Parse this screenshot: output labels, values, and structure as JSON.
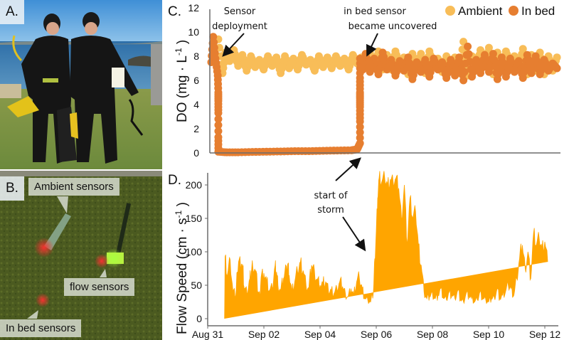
{
  "panels": {
    "a": {
      "label": "A."
    },
    "b": {
      "label": "B.",
      "callouts": {
        "ambient": "Ambient sensors",
        "flow": "flow sensors",
        "in_bed": "In bed sensors"
      }
    },
    "c": {
      "label": "C."
    },
    "d": {
      "label": "D."
    }
  },
  "colors": {
    "ambient": "#F8BD58",
    "in_bed": "#E67E30",
    "flow": "#FFA500",
    "axis": "#6b6b6b"
  },
  "chart_data": [
    {
      "id": "do",
      "type": "scatter",
      "title": "",
      "ylabel": "DO (mg · L-1)",
      "ylabel_parts": {
        "main": "DO (mg · L",
        "sup": "-1",
        "end": ")"
      },
      "xlabel": "",
      "ylim": [
        0,
        12
      ],
      "yticks": [
        0,
        2,
        4,
        6,
        8,
        10,
        12
      ],
      "xlim_days_from_aug31": [
        0,
        12.6
      ],
      "legend": {
        "position": "top-right",
        "entries": [
          "Ambient",
          "In bed"
        ]
      },
      "series": [
        {
          "name": "Ambient",
          "x_days": [
            0.3,
            0.45,
            0.55,
            0.7,
            0.85,
            1.0,
            1.15,
            1.3,
            1.45,
            1.6,
            1.75,
            1.9,
            2.05,
            2.2,
            2.35,
            2.5,
            2.65,
            2.8,
            2.95,
            3.1,
            3.25,
            3.4,
            3.55,
            3.7,
            3.85,
            4.0,
            4.15,
            4.3,
            4.45,
            4.6,
            4.75,
            4.9,
            5.05,
            5.2,
            5.35,
            5.5,
            5.65,
            5.8,
            5.95,
            6.1,
            6.25,
            6.4,
            6.55,
            6.7,
            6.85,
            7.0,
            7.15,
            7.3,
            7.45,
            7.6,
            7.75,
            7.9,
            8.05,
            8.2,
            8.35,
            8.5,
            8.65,
            8.8,
            8.95,
            9.1,
            9.25,
            9.4,
            9.55,
            9.7,
            9.85,
            10.0,
            10.15,
            10.3,
            10.45,
            10.6,
            10.75,
            10.9,
            11.05,
            11.2,
            11.35,
            11.5,
            11.65,
            11.8,
            11.95,
            12.1,
            12.25
          ],
          "values": [
            9.4,
            6.6,
            8.3,
            7.6,
            8.5,
            7.2,
            8.1,
            6.8,
            8.0,
            7.1,
            7.7,
            6.9,
            8.0,
            7.2,
            7.9,
            6.6,
            8.0,
            7.0,
            7.8,
            6.9,
            8.1,
            7.3,
            7.7,
            6.8,
            8.0,
            7.1,
            7.9,
            7.0,
            8.0,
            7.2,
            7.8,
            6.9,
            8.1,
            7.4,
            7.9,
            7.1,
            8.3,
            7.1,
            8.4,
            6.9,
            8.1,
            6.9,
            8.4,
            7.2,
            7.9,
            6.5,
            8.2,
            7.0,
            8.2,
            6.6,
            8.4,
            7.1,
            7.8,
            6.7,
            8.0,
            7.0,
            7.9,
            6.6,
            9.2,
            6.4,
            8.0,
            6.9,
            8.5,
            7.2,
            8.7,
            6.5,
            8.3,
            6.9,
            8.4,
            7.4,
            8.0,
            6.9,
            8.6,
            6.5,
            8.1,
            6.8,
            8.3,
            6.5,
            8.0,
            6.8,
            7.9
          ]
        },
        {
          "name": "In bed",
          "x_days": [
            0.05,
            0.12,
            0.2,
            0.28,
            0.3,
            0.3,
            0.3,
            0.3,
            0.3,
            0.6,
            1.0,
            1.5,
            2.0,
            2.5,
            3.0,
            3.5,
            4.0,
            4.5,
            5.0,
            5.2,
            5.3,
            5.3,
            5.3,
            5.3,
            5.3,
            5.3,
            5.3,
            5.4,
            5.5,
            5.65,
            5.8,
            5.95,
            6.1,
            6.25,
            6.4,
            6.55,
            6.7,
            6.85,
            7.0,
            7.15,
            7.3,
            7.45,
            7.6,
            7.75,
            7.9,
            8.05,
            8.2,
            8.35,
            8.5,
            8.65,
            8.8,
            8.95,
            9.1,
            9.25,
            9.4,
            9.55,
            9.7,
            9.85,
            10.0,
            10.15,
            10.3,
            10.45,
            10.6,
            10.75,
            10.9,
            11.05,
            11.2,
            11.35,
            11.5,
            11.65,
            11.8,
            11.95,
            12.1,
            12.25
          ],
          "values": [
            7.5,
            9.6,
            7.8,
            6.4,
            5.0,
            4.3,
            3.3,
            1.3,
            0.1,
            0.05,
            0.05,
            0.08,
            0.1,
            0.12,
            0.15,
            0.15,
            0.18,
            0.2,
            0.22,
            0.3,
            0.8,
            2.6,
            3.8,
            4.5,
            5.0,
            6.2,
            7.8,
            6.9,
            8.2,
            6.7,
            7.8,
            6.5,
            8.3,
            6.9,
            7.7,
            6.4,
            7.6,
            6.8,
            7.9,
            6.1,
            7.5,
            6.7,
            7.7,
            6.3,
            7.8,
            6.9,
            7.5,
            6.2,
            7.7,
            6.4,
            7.9,
            6.0,
            8.8,
            6.3,
            7.7,
            6.6,
            8.1,
            6.7,
            8.2,
            6.1,
            7.9,
            6.3,
            7.8,
            6.7,
            7.6,
            6.2,
            8.1,
            6.6,
            8.0,
            6.5,
            7.7,
            6.8,
            7.4,
            7.0
          ]
        }
      ],
      "annotations": [
        {
          "text_lines": [
            "Sensor",
            "deployment"
          ],
          "points_to_day": 0.4,
          "points_to_value": 8.0
        },
        {
          "text_lines": [
            "in bed sensor",
            "became uncovered"
          ],
          "points_to_day": 5.4,
          "points_to_value": 8.0
        }
      ]
    },
    {
      "id": "flow",
      "type": "area",
      "title": "",
      "ylabel": "Flow Speed (cm · s-1)",
      "ylabel_parts": {
        "main": "Flow Speed (cm · s",
        "sup": "-1",
        "end": ")"
      },
      "xlabel": "",
      "ylim": [
        0,
        220
      ],
      "yticks": [
        0,
        50,
        100,
        150,
        200
      ],
      "xticks": [
        {
          "day": 0,
          "label": "Aug 31"
        },
        {
          "day": 2,
          "label": "Sep 02"
        },
        {
          "day": 4,
          "label": "Sep 04"
        },
        {
          "day": 6,
          "label": "Sep 06"
        },
        {
          "day": 8,
          "label": "Sep 08"
        },
        {
          "day": 10,
          "label": "Sep 10"
        },
        {
          "day": 12,
          "label": "Sep 12"
        }
      ],
      "xlim_days_from_aug31": [
        0,
        12.6
      ],
      "series": [
        {
          "name": "Flow Speed",
          "x_days": [
            0.6,
            0.62,
            0.7,
            0.8,
            0.9,
            1.0,
            1.05,
            1.1,
            1.2,
            1.25,
            1.3,
            1.4,
            1.5,
            1.55,
            1.6,
            1.7,
            1.8,
            1.85,
            1.9,
            2.0,
            2.1,
            2.2,
            2.3,
            2.4,
            2.45,
            2.5,
            2.6,
            2.7,
            2.8,
            2.85,
            2.9,
            3.0,
            3.1,
            3.2,
            3.3,
            3.4,
            3.5,
            3.6,
            3.7,
            3.8,
            3.9,
            4.0,
            4.1,
            4.2,
            4.3,
            4.4,
            4.5,
            4.6,
            4.7,
            4.8,
            4.9,
            5.0,
            5.1,
            5.2,
            5.3,
            5.4,
            5.5,
            5.6,
            5.7,
            5.8,
            5.9,
            5.95,
            6.0,
            6.05,
            6.1,
            6.2,
            6.3,
            6.4,
            6.5,
            6.6,
            6.7,
            6.8,
            6.9,
            7.0,
            7.1,
            7.2,
            7.3,
            7.4,
            7.5,
            7.6,
            7.7,
            7.8,
            7.9,
            8.0,
            8.1,
            8.2,
            8.3,
            8.4,
            8.5,
            8.6,
            8.7,
            8.8,
            8.9,
            9.0,
            9.1,
            9.2,
            9.3,
            9.4,
            9.5,
            9.6,
            9.7,
            9.8,
            9.9,
            10.0,
            10.1,
            10.2,
            10.3,
            10.4,
            10.5,
            10.6,
            10.7,
            10.8,
            10.9,
            11.0,
            11.1,
            11.2,
            11.3,
            11.4,
            11.5,
            11.6,
            11.7,
            11.8,
            11.9,
            12.0,
            12.1,
            12.2,
            12.3,
            12.4
          ],
          "values": [
            0,
            93,
            65,
            88,
            40,
            35,
            70,
            85,
            82,
            75,
            45,
            38,
            60,
            70,
            80,
            72,
            40,
            35,
            62,
            68,
            55,
            42,
            45,
            80,
            70,
            50,
            42,
            60,
            78,
            82,
            65,
            40,
            55,
            70,
            85,
            72,
            50,
            45,
            80,
            72,
            58,
            50,
            52,
            55,
            40,
            43,
            38,
            45,
            55,
            48,
            38,
            33,
            45,
            35,
            55,
            60,
            45,
            30,
            28,
            25,
            40,
            90,
            130,
            180,
            210,
            205,
            210,
            200,
            208,
            205,
            210,
            195,
            150,
            200,
            110,
            180,
            150,
            160,
            110,
            80,
            40,
            30,
            33,
            38,
            30,
            35,
            45,
            30,
            28,
            40,
            35,
            30,
            42,
            28,
            26,
            38,
            35,
            30,
            25,
            28,
            40,
            30,
            28,
            25,
            30,
            32,
            45,
            30,
            35,
            40,
            50,
            45,
            35,
            60,
            90,
            110,
            75,
            100,
            60,
            128,
            110,
            120,
            105,
            115,
            85
          ]
        }
      ],
      "annotations": [
        {
          "text_lines": [
            "start of",
            "storm"
          ],
          "points_to_day": 5.65,
          "points_to_value": 95
        }
      ]
    }
  ]
}
